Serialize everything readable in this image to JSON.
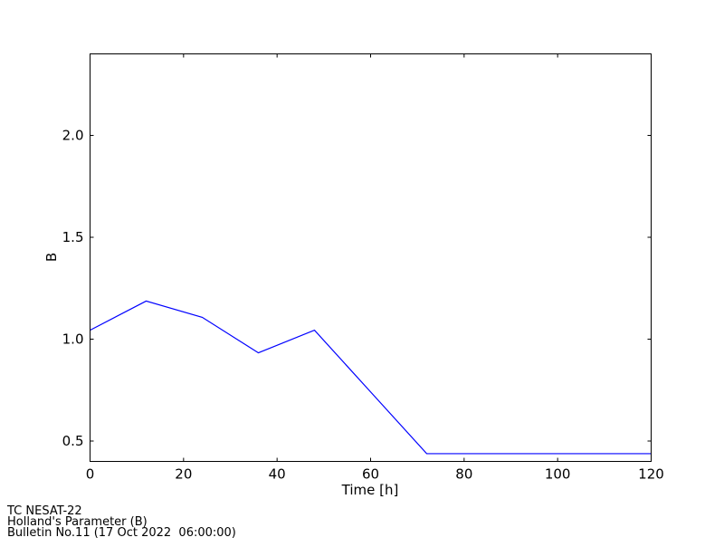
{
  "chart_data": {
    "type": "line",
    "title": "",
    "xlabel": "Time [h]",
    "ylabel": "B",
    "xlim": [
      0,
      120
    ],
    "ylim": [
      0.4,
      2.4
    ],
    "xticks": [
      0,
      20,
      40,
      60,
      80,
      100,
      120
    ],
    "xtick_labels": [
      "0",
      "20",
      "40",
      "60",
      "80",
      "100",
      "120"
    ],
    "yticks": [
      0.5,
      1.0,
      1.5,
      2.0
    ],
    "ytick_labels": [
      "0.5",
      "1.0",
      "1.5",
      "2.0"
    ],
    "grid": false,
    "series": [
      {
        "color": "#0000ff",
        "x": [
          0,
          12,
          24,
          36,
          48,
          60,
          72,
          84,
          96,
          108,
          120
        ],
        "y": [
          1.044,
          1.187,
          1.107,
          0.933,
          1.044,
          0.741,
          0.438,
          0.438,
          0.438,
          0.438,
          0.438
        ]
      }
    ]
  },
  "footer": {
    "line1": "TC NESAT-22",
    "line2": "Holland's Parameter (B)",
    "line3": "Bulletin No.11 (17 Oct 2022  06:00:00)"
  }
}
